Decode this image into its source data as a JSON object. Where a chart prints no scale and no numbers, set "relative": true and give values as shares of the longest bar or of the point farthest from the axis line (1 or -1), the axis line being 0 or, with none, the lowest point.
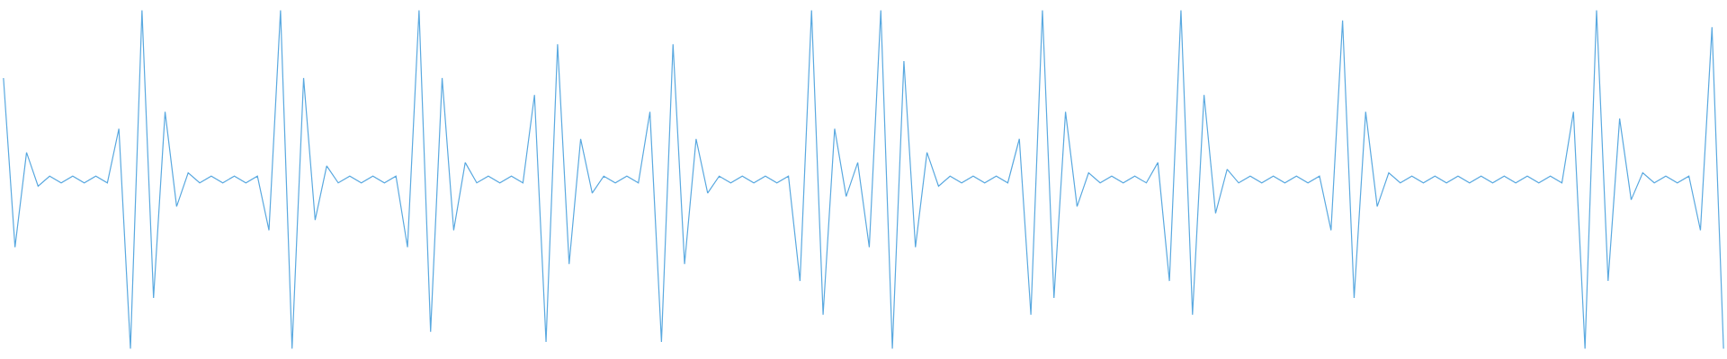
{
  "chart_data": {
    "type": "line",
    "relative": true,
    "categories": [
      null,
      null,
      null,
      null,
      null,
      null,
      null,
      null,
      null,
      null,
      null,
      null,
      null,
      null,
      null,
      null,
      null,
      null,
      null,
      null,
      null,
      null,
      null,
      null,
      null,
      null,
      null,
      null,
      null,
      null,
      null,
      null,
      null,
      null,
      null,
      null,
      null,
      null,
      null,
      null,
      null,
      null,
      null,
      null,
      null,
      null,
      null,
      null,
      null,
      null,
      null,
      null,
      null,
      null,
      null,
      null,
      null,
      null,
      null,
      null,
      null,
      null,
      null,
      null,
      null,
      null,
      null,
      null,
      null,
      null,
      null,
      null,
      null,
      null,
      null,
      null,
      null,
      null,
      null,
      null,
      null,
      null,
      null,
      null,
      null,
      null,
      null,
      null,
      null,
      null,
      null,
      null,
      null,
      null,
      null,
      null,
      null,
      null,
      null,
      null,
      null,
      null,
      null,
      null,
      null,
      null,
      null,
      null,
      null,
      null,
      null,
      null,
      null,
      null,
      null,
      null,
      null,
      null,
      null,
      null,
      null,
      null,
      null,
      null,
      null,
      null,
      null,
      null,
      null,
      null,
      null,
      null,
      null,
      null,
      null,
      null,
      null,
      null,
      null,
      null,
      null,
      null,
      null,
      null,
      null,
      null,
      null,
      null,
      null,
      null
    ],
    "series": [
      {
        "color": "#5aa9e0",
        "values": [
          0.8,
          0.3,
          0.58,
          0.48,
          0.51,
          0.49,
          0.51,
          0.49,
          0.51,
          0.49,
          0.65,
          0,
          1,
          0.15,
          0.7,
          0.42,
          0.52,
          0.49,
          0.51,
          0.49,
          0.51,
          0.49,
          0.51,
          0.35,
          1,
          0,
          0.8,
          0.38,
          0.54,
          0.49,
          0.51,
          0.49,
          0.51,
          0.49,
          0.51,
          0.3,
          1,
          0.05,
          0.8,
          0.35,
          0.55,
          0.49,
          0.51,
          0.49,
          0.51,
          0.49,
          0.75,
          0.02,
          0.9,
          0.25,
          0.62,
          0.46,
          0.51,
          0.49,
          0.51,
          0.49,
          0.7,
          0.02,
          0.9,
          0.25,
          0.62,
          0.46,
          0.51,
          0.49,
          0.51,
          0.49,
          0.51,
          0.49,
          0.51,
          0.2,
          1,
          0.1,
          0.65,
          0.45,
          0.55,
          0.3,
          1,
          0,
          0.85,
          0.3,
          0.58,
          0.48,
          0.51,
          0.49,
          0.51,
          0.49,
          0.51,
          0.49,
          0.62,
          0.1,
          1,
          0.15,
          0.7,
          0.42,
          0.52,
          0.49,
          0.51,
          0.49,
          0.51,
          0.49,
          0.55,
          0.2,
          1,
          0.1,
          0.75,
          0.4,
          0.53,
          0.49,
          0.51,
          0.49,
          0.51,
          0.49,
          0.51,
          0.49,
          0.51,
          0.35,
          0.97,
          0.15,
          0.7,
          0.42,
          0.52,
          0.49,
          0.51,
          0.49,
          0.51,
          0.49,
          0.51,
          0.49,
          0.51,
          0.49,
          0.51,
          0.49,
          0.51,
          0.49,
          0.51,
          0.49,
          0.7,
          0,
          1,
          0.2,
          0.68,
          0.44,
          0.52,
          0.49,
          0.51,
          0.49,
          0.51,
          0.35,
          0.95,
          0
        ]
      }
    ]
  }
}
